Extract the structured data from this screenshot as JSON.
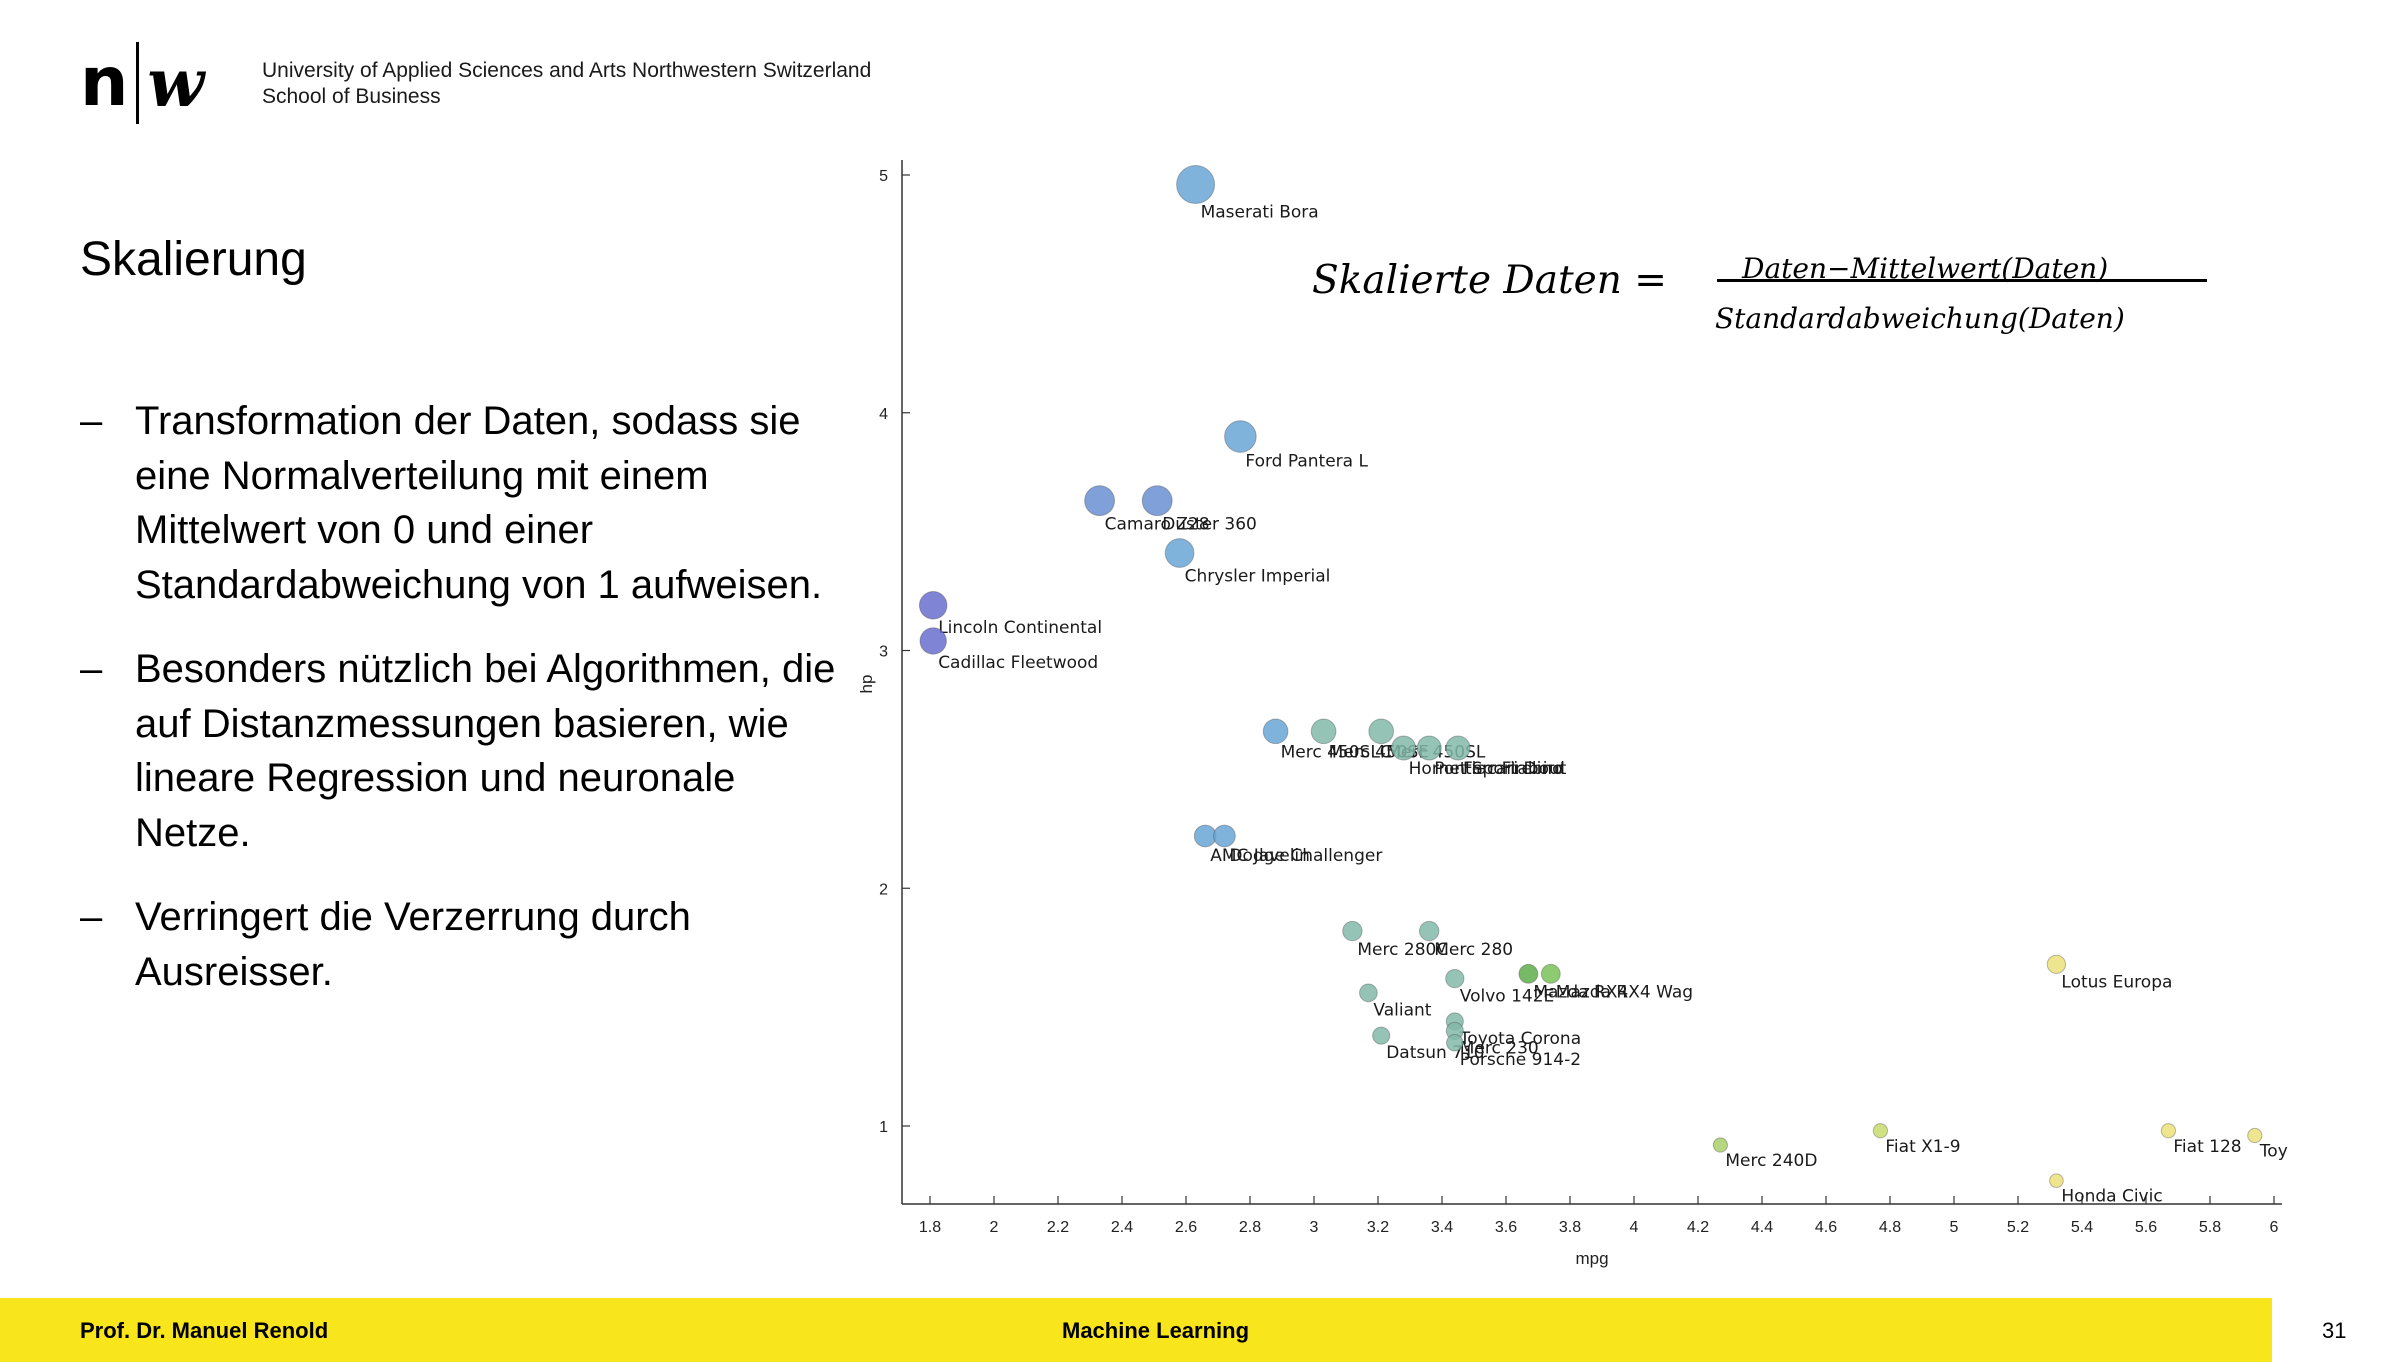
{
  "header": {
    "logo_n": "n",
    "logo_w": "w",
    "university_line1": "University of Applied Sciences and Arts Northwestern Switzerland",
    "university_line2": "School of Business"
  },
  "slide": {
    "title": "Skalierung",
    "bullet_marker": "–",
    "bullets": [
      "Transformation der Daten, sodass sie eine Normalverteilung mit einem Mittelwert von 0 und einer Standardabweichung von 1 aufweisen.",
      "Besonders nützlich bei Algorithmen, die auf Distanzmessungen basieren, wie lineare Regression und neuronale Netze.",
      "Verringert die Verzerrung durch Ausreisser."
    ]
  },
  "formula": {
    "lhs": "Skalierte Daten =",
    "numerator": "Daten−Mittelwert(Daten)",
    "denominator": "Standardabweichung(Daten)"
  },
  "footer": {
    "author": "Prof. Dr. Manuel Renold",
    "course": "Machine Learning",
    "page": "31"
  },
  "colors": {
    "footer_bar": "#f9e51c",
    "point_purple": "#6a6fcc",
    "point_blue": "#6aa6d6",
    "point_teal": "#82b9a8",
    "point_green": "#79c257",
    "point_yellow": "#ece07a"
  },
  "chart_data": {
    "type": "scatter",
    "xlabel": "mpg",
    "ylabel": "hp",
    "xlim": [
      1.7,
      6.0
    ],
    "ylim": [
      0.67,
      5.1
    ],
    "xticks": [
      "1.8",
      "2",
      "2.2",
      "2.4",
      "2.6",
      "2.8",
      "3",
      "3.2",
      "3.4",
      "3.6",
      "3.8",
      "4",
      "4.2",
      "4.4",
      "4.6",
      "4.8",
      "5",
      "5.2",
      "5.4",
      "5.6",
      "5.8",
      "6"
    ],
    "yticks": [
      "1",
      "2",
      "3",
      "4",
      "5"
    ],
    "grid": false,
    "points": [
      {
        "x": 2.63,
        "y": 4.96,
        "label": "Maserati Bora",
        "color": "#6aa6d6",
        "size": 5.0
      },
      {
        "x": 2.77,
        "y": 3.9,
        "label": "Ford Pantera L",
        "color": "#6aa6d6",
        "size": 3.9
      },
      {
        "x": 2.33,
        "y": 3.63,
        "label": "Camaro Z28",
        "color": "#6a8fd4",
        "size": 3.6
      },
      {
        "x": 2.51,
        "y": 3.63,
        "label": "Duster 360",
        "color": "#6a8fd4",
        "size": 3.6
      },
      {
        "x": 2.58,
        "y": 3.41,
        "label": "Chrysler Imperial",
        "color": "#6aa6d6",
        "size": 3.4
      },
      {
        "x": 1.81,
        "y": 3.19,
        "label": "Lincoln Continental",
        "color": "#6a6fcc",
        "size": 3.2
      },
      {
        "x": 1.81,
        "y": 3.04,
        "label": "Cadillac Fleetwood",
        "color": "#6a6fcc",
        "size": 3.0
      },
      {
        "x": 2.88,
        "y": 2.66,
        "label": "Merc 450SLC",
        "color": "#6aa6d6",
        "size": 2.7
      },
      {
        "x": 3.03,
        "y": 2.66,
        "label": "Merc 450SE",
        "color": "#82b9a8",
        "size": 2.7
      },
      {
        "x": 3.21,
        "y": 2.66,
        "label": "Merc 450SL",
        "color": "#82b9a8",
        "size": 2.7
      },
      {
        "x": 3.28,
        "y": 2.59,
        "label": "Hornet Sportabout",
        "color": "#82b9a8",
        "size": 2.6
      },
      {
        "x": 3.36,
        "y": 2.59,
        "label": "Pontiac Firebird",
        "color": "#82b9a8",
        "size": 2.6
      },
      {
        "x": 3.45,
        "y": 2.59,
        "label": "Ferrari Dino",
        "color": "#82b9a8",
        "size": 2.6
      },
      {
        "x": 2.66,
        "y": 2.22,
        "label": "AMC Javelin",
        "color": "#6aa6d6",
        "size": 2.2
      },
      {
        "x": 2.72,
        "y": 2.22,
        "label": "Dodge Challenger",
        "color": "#6aa6d6",
        "size": 2.2
      },
      {
        "x": 3.12,
        "y": 1.82,
        "label": "Merc 280C",
        "color": "#82b9a8",
        "size": 1.8
      },
      {
        "x": 3.36,
        "y": 1.82,
        "label": "Merc 280",
        "color": "#82b9a8",
        "size": 1.8
      },
      {
        "x": 3.67,
        "y": 1.64,
        "label": "Mazda RX4",
        "color": "#5fae4a",
        "size": 1.7
      },
      {
        "x": 3.74,
        "y": 1.64,
        "label": "Mazda RX4 Wag",
        "color": "#79c257",
        "size": 1.7
      },
      {
        "x": 3.44,
        "y": 1.62,
        "label": "Volvo 142E",
        "color": "#82b9a8",
        "size": 1.6
      },
      {
        "x": 3.17,
        "y": 1.56,
        "label": "Valiant",
        "color": "#82b9a8",
        "size": 1.5
      },
      {
        "x": 3.21,
        "y": 1.38,
        "label": "Datsun 710",
        "color": "#82b9a8",
        "size": 1.4
      },
      {
        "x": 3.44,
        "y": 1.44,
        "label": "Toyota Corona",
        "color": "#82b9a8",
        "size": 1.4
      },
      {
        "x": 3.44,
        "y": 1.4,
        "label": "Merc 230",
        "color": "#82b9a8",
        "size": 1.4
      },
      {
        "x": 3.44,
        "y": 1.35,
        "label": "Porsche 914-2",
        "color": "#82b9a8",
        "size": 1.3
      },
      {
        "x": 5.32,
        "y": 1.68,
        "label": "Lotus Europa",
        "color": "#ece07a",
        "size": 1.6
      },
      {
        "x": 4.27,
        "y": 0.92,
        "label": "Merc 240D",
        "color": "#a9cf6a",
        "size": 0.9
      },
      {
        "x": 4.77,
        "y": 0.98,
        "label": "Fiat X1-9",
        "color": "#c8dc70",
        "size": 0.9
      },
      {
        "x": 5.67,
        "y": 0.98,
        "label": "Fiat 128",
        "color": "#ece07a",
        "size": 0.9
      },
      {
        "x": 5.94,
        "y": 0.96,
        "label": "Toy",
        "color": "#ece07a",
        "size": 0.9
      },
      {
        "x": 5.32,
        "y": 0.77,
        "label": "Honda Civic",
        "color": "#ece07a",
        "size": 0.8
      }
    ]
  }
}
